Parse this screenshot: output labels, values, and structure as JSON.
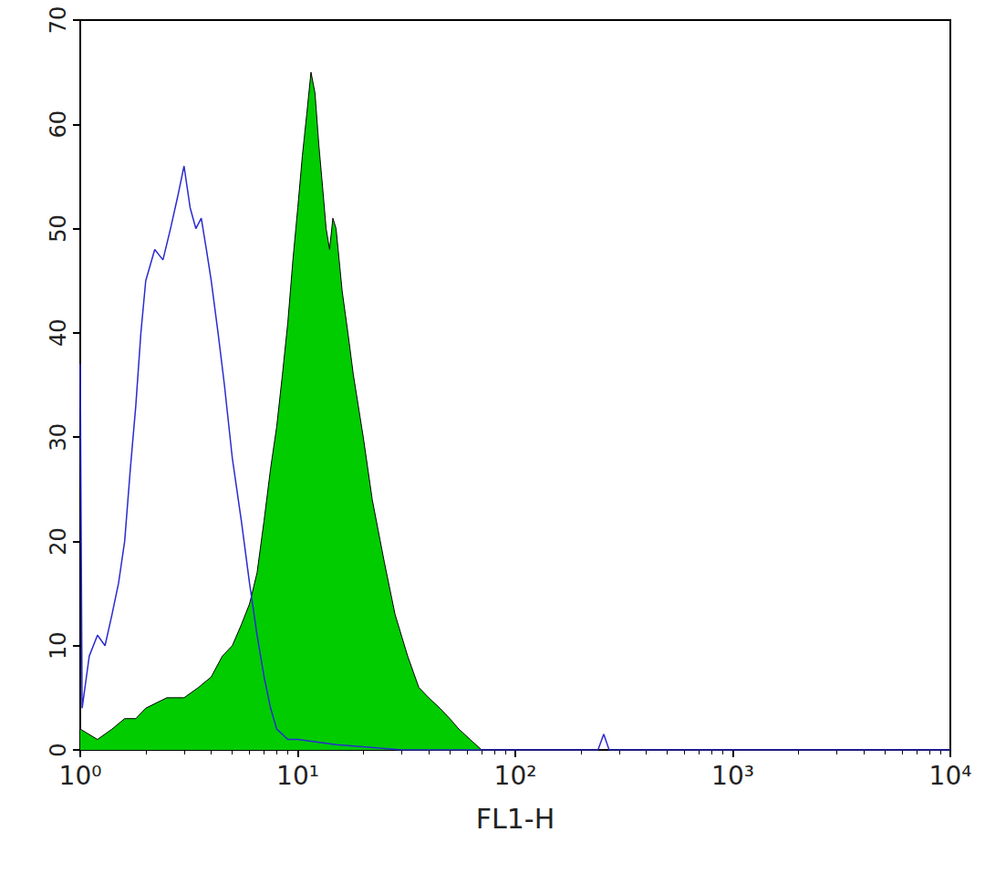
{
  "chart_data": {
    "type": "line",
    "x_label": "FL1-H",
    "log": "x",
    "grid": false,
    "xlim": [
      1,
      10000
    ],
    "xticks": [
      {
        "value": 1,
        "label": "10⁰"
      },
      {
        "value": 10,
        "label": "10¹"
      },
      {
        "value": 100,
        "label": "10²"
      },
      {
        "value": 1000,
        "label": "10³"
      },
      {
        "value": 10000,
        "label": "10⁴"
      }
    ],
    "ylim": [
      0,
      70
    ],
    "yticks": [
      0,
      10,
      20,
      30,
      40,
      50,
      60,
      70
    ],
    "series": [
      {
        "type": "line",
        "color": "#2b2bd0",
        "x": [
          1.0,
          1.02,
          1.1,
          1.2,
          1.3,
          1.4,
          1.5,
          1.6,
          1.7,
          1.8,
          1.9,
          2.0,
          2.2,
          2.4,
          2.6,
          2.8,
          3.0,
          3.2,
          3.4,
          3.6,
          3.8,
          4.0,
          4.3,
          4.6,
          5.0,
          5.5,
          6.0,
          6.5,
          7.0,
          7.5,
          8.0,
          9.0,
          10,
          15,
          30,
          100,
          240,
          255,
          270,
          1000,
          10000
        ],
        "values": [
          37,
          4,
          9,
          11,
          10,
          13,
          16,
          20,
          27,
          33,
          40,
          45,
          48,
          47,
          50,
          53,
          56,
          52,
          50,
          51,
          48,
          45,
          40,
          35,
          28,
          22,
          16,
          11,
          7,
          4,
          2,
          1,
          1,
          0.5,
          0,
          0,
          0,
          1.5,
          0,
          0,
          0
        ]
      },
      {
        "type": "area",
        "color": "#00cc00",
        "x": [
          1.0,
          1.2,
          1.4,
          1.6,
          1.8,
          2.0,
          2.5,
          3.0,
          3.5,
          4.0,
          4.5,
          5.0,
          5.5,
          6.0,
          6.5,
          7.0,
          7.5,
          8.0,
          8.5,
          9.0,
          9.5,
          10,
          10.5,
          11,
          11.5,
          12,
          12.5,
          13,
          13.5,
          14,
          14.5,
          15,
          16,
          17,
          18,
          20,
          22,
          25,
          28,
          32,
          36,
          40,
          45,
          50,
          55,
          62,
          70,
          100,
          10000
        ],
        "values": [
          2,
          1,
          2,
          3,
          3,
          4,
          5,
          5,
          6,
          7,
          9,
          10,
          12,
          14,
          17,
          22,
          27,
          31,
          36,
          41,
          47,
          52,
          57,
          61,
          65,
          63,
          58,
          54,
          50,
          48,
          51,
          50,
          44,
          40,
          36,
          30,
          24,
          18,
          13,
          9,
          6,
          5,
          4,
          3,
          2,
          1,
          0,
          0,
          0
        ]
      }
    ]
  }
}
